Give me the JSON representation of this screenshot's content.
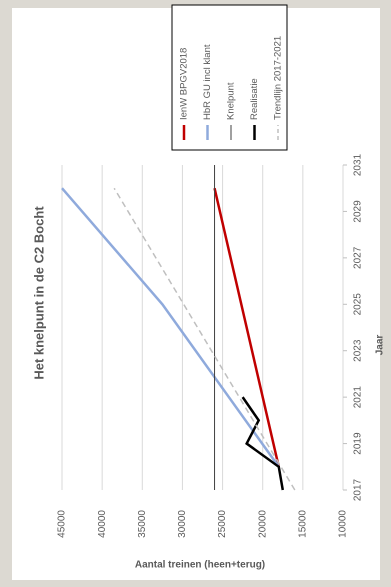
{
  "chart_data": {
    "type": "line",
    "title": "Het knelpunt in de C2 Bocht",
    "xlabel": "Jaar",
    "ylabel": "Aantal treinen (heen+terug)",
    "xlim": [
      2017,
      2031
    ],
    "xticks": [
      2017,
      2019,
      2021,
      2023,
      2025,
      2027,
      2029,
      2031
    ],
    "ylim": [
      10000,
      45000
    ],
    "yticks": [
      10000,
      15000,
      20000,
      25000,
      30000,
      35000,
      40000,
      45000
    ],
    "grid": true,
    "legend": "right",
    "series": [
      {
        "name": "IenW BPGV2018",
        "color": "#c00000",
        "width": 2.5,
        "x": [
          2018,
          2030
        ],
        "values": [
          18000,
          26000
        ]
      },
      {
        "name": "HbR GU incl klant",
        "color": "#8faadc",
        "width": 2.5,
        "x": [
          2018,
          2025,
          2030
        ],
        "values": [
          18000,
          32500,
          45000
        ]
      },
      {
        "name": "Knelpunt",
        "color": "#404040",
        "width": 1,
        "x": [
          2017,
          2031
        ],
        "values": [
          26000,
          26000
        ]
      },
      {
        "name": "Realisatie",
        "color": "#000000",
        "width": 2.5,
        "x": [
          2017,
          2018,
          2019,
          2020,
          2021
        ],
        "values": [
          17500,
          18000,
          22000,
          20500,
          22500
        ]
      },
      {
        "name": "Trendlijn 2017-2021",
        "color": "#bfbfbf",
        "width": 1.5,
        "dashed": true,
        "x": [
          2017,
          2030
        ],
        "values": [
          16000,
          38500
        ]
      }
    ]
  }
}
